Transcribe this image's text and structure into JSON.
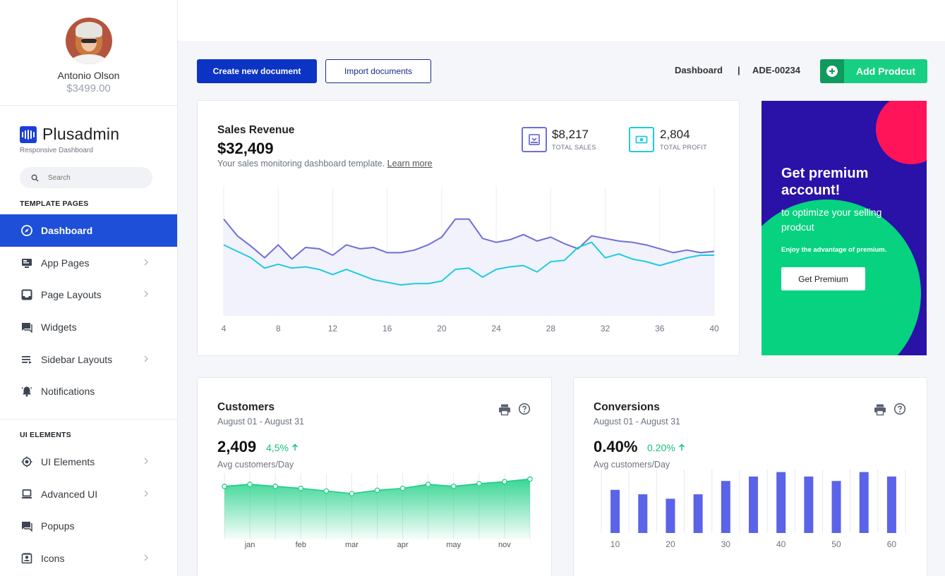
{
  "profile": {
    "name": "Antonio Olson",
    "balance": "$3499.00"
  },
  "brand": {
    "name": "Plusadmin",
    "subtitle": "Responsive Dashboard"
  },
  "search": {
    "placeholder": "Search"
  },
  "sections": {
    "template_pages": "TEMPLATE PAGES",
    "ui_elements": "UI ELEMENTS"
  },
  "nav": {
    "template": [
      {
        "label": "Dashboard",
        "icon": "compass-icon",
        "active": true
      },
      {
        "label": "App Pages",
        "icon": "monitor-icon",
        "chevron": true
      },
      {
        "label": "Page Layouts",
        "icon": "inbox-icon",
        "chevron": true
      },
      {
        "label": "Widgets",
        "icon": "chat-icon"
      },
      {
        "label": "Sidebar Layouts",
        "icon": "list-icon",
        "chevron": true
      },
      {
        "label": "Notifications",
        "icon": "bell-icon"
      }
    ],
    "ui": [
      {
        "label": "UI Elements",
        "icon": "target-icon",
        "chevron": true
      },
      {
        "label": "Advanced UI",
        "icon": "laptop-icon",
        "chevron": true
      },
      {
        "label": "Popups",
        "icon": "chat-icon"
      },
      {
        "label": "Icons",
        "icon": "contact-icon",
        "chevron": true
      }
    ]
  },
  "actions": {
    "create": "Create new document",
    "import": "Import documents",
    "add_product": "Add Prodcut"
  },
  "breadcrumb": {
    "page": "Dashboard",
    "separator": "|",
    "code": "ADE-00234"
  },
  "sales": {
    "title": "Sales Revenue",
    "value": "$32,409",
    "description": "Your sales monitoring dashboard template.",
    "link": "Learn more",
    "total_sales_value": "$8,217",
    "total_sales_label": "TOTAL SALES",
    "total_profit_value": "2,804",
    "total_profit_label": "TOTAL PROFIT"
  },
  "premium": {
    "title": "Get premium account!",
    "subtitle": "to optimize your selling prodcut",
    "note": "Enjoy the advantage of premium.",
    "button": "Get Premium"
  },
  "customers": {
    "title": "Customers",
    "period": "August 01 - August 31",
    "value": "2,409",
    "change": "4,5%",
    "caption": "Avg customers/Day"
  },
  "conversions": {
    "title": "Conversions",
    "period": "August 01 - August 31",
    "value": "0.40%",
    "change": "0.20%",
    "caption": "Avg customers/Day"
  },
  "colors": {
    "primary": "#1d4fd8",
    "series_a": "#6f6fd8",
    "series_b": "#1ecbe1",
    "green": "#17cf82",
    "bar": "#5b63e8"
  },
  "chart_data": [
    {
      "type": "line",
      "name": "sales-revenue",
      "x": [
        4,
        5,
        6,
        7,
        8,
        9,
        10,
        11,
        12,
        13,
        14,
        15,
        16,
        17,
        18,
        19,
        20,
        21,
        22,
        23,
        24,
        25,
        26,
        27,
        28,
        29,
        30,
        31,
        32,
        33,
        34,
        35,
        36,
        37,
        38,
        39,
        40
      ],
      "xticks": [
        4,
        8,
        12,
        16,
        20,
        24,
        28,
        32,
        36,
        40
      ],
      "ylim": [
        0,
        100
      ],
      "series": [
        {
          "values": [
            75,
            62,
            54,
            45,
            55,
            44,
            53,
            52,
            47,
            55,
            52,
            53,
            49,
            49,
            51,
            55,
            61,
            75,
            75,
            60,
            57,
            59,
            63,
            58,
            61,
            56,
            52,
            62,
            60,
            58,
            57,
            55,
            52,
            49,
            51,
            49,
            50
          ]
        },
        {
          "values": [
            55,
            50,
            45,
            37,
            40,
            37,
            38,
            36,
            32,
            36,
            32,
            28,
            26,
            24,
            25,
            25,
            27,
            36,
            37,
            30,
            36,
            38,
            39,
            34,
            42,
            43,
            53,
            57,
            45,
            48,
            44,
            42,
            39,
            42,
            45,
            47,
            47
          ]
        }
      ]
    },
    {
      "type": "area",
      "name": "customers",
      "categories": [
        "jan",
        "feb",
        "mar",
        "apr",
        "may",
        "nov"
      ],
      "x": [
        1,
        2,
        3,
        4,
        5,
        6,
        7,
        8,
        9,
        10,
        11,
        12,
        13
      ],
      "ylim": [
        0,
        100
      ],
      "values": [
        80,
        83,
        80,
        77,
        73,
        69,
        74,
        77,
        83,
        80,
        84,
        87,
        91
      ]
    },
    {
      "type": "bar",
      "name": "conversions",
      "xticks": [
        10,
        20,
        30,
        40,
        50,
        60
      ],
      "x": [
        10,
        15,
        20,
        25,
        30,
        35,
        40,
        45,
        50,
        55,
        60
      ],
      "ylim": [
        0,
        100
      ],
      "values": [
        68,
        61,
        54,
        61,
        82,
        89,
        96,
        89,
        82,
        96,
        89
      ]
    }
  ]
}
